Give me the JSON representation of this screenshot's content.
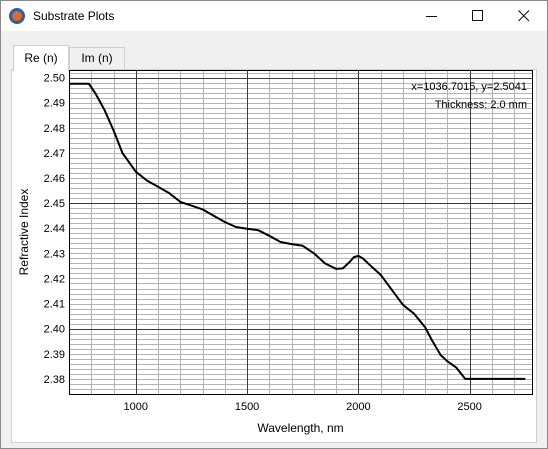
{
  "window": {
    "title": "Substrate Plots",
    "icon": "app-logo-icon",
    "controls": {
      "minimize": "minimize-icon",
      "maximize": "maximize-icon",
      "close": "close-icon"
    }
  },
  "tabs": [
    {
      "label": "Re (n)",
      "selected": true
    },
    {
      "label": "Im (n)",
      "selected": false
    }
  ],
  "readout": "x=1036.7015, y=2.5041",
  "thickness": "Thickness: 2.0 mm",
  "chart_data": {
    "type": "line",
    "xlabel": "Wavelength, nm",
    "ylabel": "Refractive Index",
    "xlim": [
      700,
      2780
    ],
    "ylim": [
      2.374,
      2.503
    ],
    "xticks": [
      1000,
      1500,
      2000,
      2500
    ],
    "yticks": [
      2.38,
      2.39,
      2.4,
      2.41,
      2.42,
      2.43,
      2.44,
      2.45,
      2.46,
      2.47,
      2.48,
      2.49,
      2.5
    ],
    "ytick_labels": [
      "2.38",
      "2.39",
      "2.40",
      "2.41",
      "2.42",
      "2.43",
      "2.44",
      "2.45",
      "2.46",
      "2.47",
      "2.48",
      "2.49",
      "2.50"
    ],
    "grid": true,
    "line_color": "#000000",
    "series": [
      {
        "x": [
          700,
          790,
          820,
          860,
          900,
          940,
          1000,
          1050,
          1100,
          1150,
          1200,
          1250,
          1300,
          1350,
          1400,
          1450,
          1500,
          1550,
          1600,
          1650,
          1700,
          1750,
          1800,
          1850,
          1900,
          1930,
          1960,
          1980,
          2000,
          2020,
          2050,
          2100,
          2150,
          2200,
          2250,
          2300,
          2330,
          2370,
          2400,
          2440,
          2480,
          2500,
          2550,
          2600,
          2650,
          2700,
          2750
        ],
        "y": [
          2.4975,
          2.4975,
          2.4935,
          2.487,
          2.479,
          2.47,
          2.4625,
          2.459,
          2.4565,
          2.454,
          2.4505,
          2.449,
          2.4475,
          2.445,
          2.4425,
          2.4405,
          2.4398,
          2.4392,
          2.437,
          2.4345,
          2.4337,
          2.433,
          2.43,
          2.426,
          2.4238,
          2.424,
          2.4265,
          2.4285,
          2.429,
          2.428,
          2.4255,
          2.4215,
          2.4155,
          2.4095,
          2.406,
          2.4005,
          2.3955,
          2.3895,
          2.387,
          2.3845,
          2.38,
          2.38,
          2.38,
          2.38,
          2.38,
          2.38,
          2.38
        ]
      }
    ]
  }
}
